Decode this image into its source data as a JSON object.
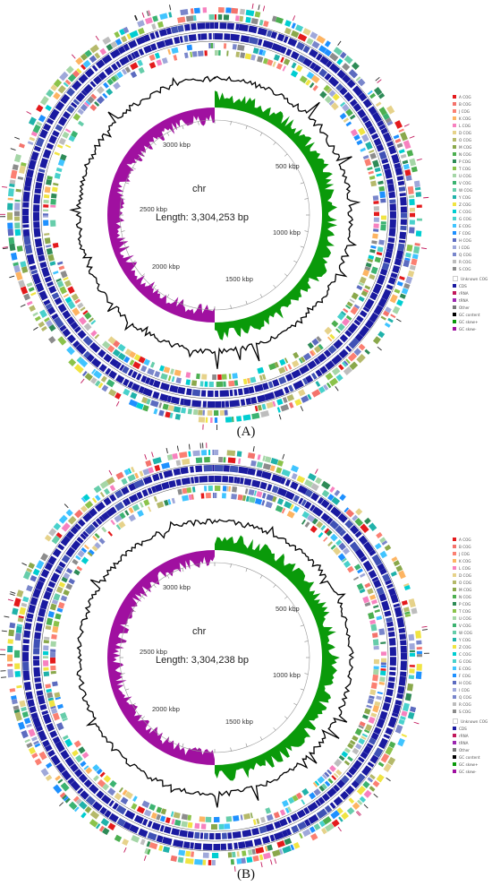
{
  "panels": [
    {
      "label": "(A)",
      "chromosome": "chr",
      "length_text": "Length: 3,304,253 bp",
      "scale_labels": [
        "500 kbp",
        "1000 kbp",
        "1500 kbp",
        "2000 kbp",
        "2500 kbp",
        "3000 kbp"
      ]
    },
    {
      "label": "(B)",
      "chromosome": "chr",
      "length_text": "Length: 3,304,238 bp",
      "scale_labels": [
        "500 kbp",
        "1000 kbp",
        "1500 kbp",
        "2000 kbp",
        "2500 kbp",
        "3000 kbp"
      ]
    }
  ],
  "legend": {
    "cog_categories": [
      {
        "label": "A COG",
        "color": "#e41a1c"
      },
      {
        "label": "B COG",
        "color": "#f4736c"
      },
      {
        "label": "J COG",
        "color": "#fb8072"
      },
      {
        "label": "K COG",
        "color": "#fdb462"
      },
      {
        "label": "L COG",
        "color": "#f781bf"
      },
      {
        "label": "D COG",
        "color": "#e6d28a"
      },
      {
        "label": "O COG",
        "color": "#b5b96a"
      },
      {
        "label": "M COG",
        "color": "#8aa84b"
      },
      {
        "label": "N COG",
        "color": "#4caf50"
      },
      {
        "label": "P COG",
        "color": "#2e8b57"
      },
      {
        "label": "T COG",
        "color": "#8bc34a"
      },
      {
        "label": "U COG",
        "color": "#a5d6a7"
      },
      {
        "label": "V COG",
        "color": "#3cb371"
      },
      {
        "label": "W COG",
        "color": "#66cdaa"
      },
      {
        "label": "Y COG",
        "color": "#20b2aa"
      },
      {
        "label": "Z COG",
        "color": "#f0e442"
      },
      {
        "label": "C COG",
        "color": "#00ced1"
      },
      {
        "label": "G COG",
        "color": "#48d1cc"
      },
      {
        "label": "E COG",
        "color": "#40c4ff"
      },
      {
        "label": "F COG",
        "color": "#1e90ff"
      },
      {
        "label": "H COG",
        "color": "#5c6bc0"
      },
      {
        "label": "I COG",
        "color": "#9fa8da"
      },
      {
        "label": "Q COG",
        "color": "#7986cb"
      },
      {
        "label": "R COG",
        "color": "#bdbdbd"
      },
      {
        "label": "S COG",
        "color": "#8c8c8c"
      }
    ],
    "feature_types": [
      {
        "label": "Unknown COG",
        "color": "#ffffff"
      },
      {
        "label": "CDS",
        "color": "#1a1aa0"
      },
      {
        "label": "rRNA",
        "color": "#c2185b"
      },
      {
        "label": "tRNA",
        "color": "#9c27b0"
      },
      {
        "label": "Other",
        "color": "#777777"
      },
      {
        "label": "GC content",
        "color": "#000000"
      },
      {
        "label": "GC skew+",
        "color": "#0a9a0a"
      },
      {
        "label": "GC skew-",
        "color": "#a010a0"
      }
    ]
  },
  "colors": {
    "cds_dark": "#1a1aa0",
    "skew_plus": "#0a9a0a",
    "skew_minus": "#a010a0",
    "gc_content": "#000000"
  }
}
